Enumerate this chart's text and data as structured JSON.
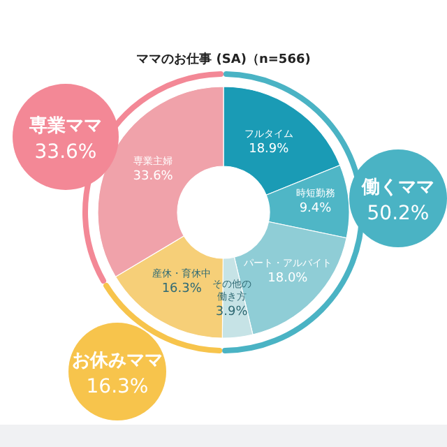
{
  "chart_data": {
    "type": "donut",
    "title": "ママのお仕事 (SA)（n=566)",
    "categories": [
      "フルタイム",
      "時短勤務",
      "パート・アルバイト",
      "その他の働き方",
      "産休・育休中",
      "専業主婦"
    ],
    "values": [
      18.9,
      9.4,
      18.0,
      3.9,
      16.3,
      33.6
    ],
    "value_labels": [
      "18.9%",
      "9.4%",
      "18.0%",
      "3.9%",
      "16.3%",
      "33.6%"
    ],
    "colors": [
      "#1a9bb5",
      "#4fb6c6",
      "#8fcdd6",
      "#c6e3e6",
      "#f6cf78",
      "#f0a2aa"
    ],
    "annotations": [
      "働くママ",
      "50.2%",
      "お休みママ",
      "16.3%",
      "専業ママ",
      "33.6%"
    ]
  }
}
